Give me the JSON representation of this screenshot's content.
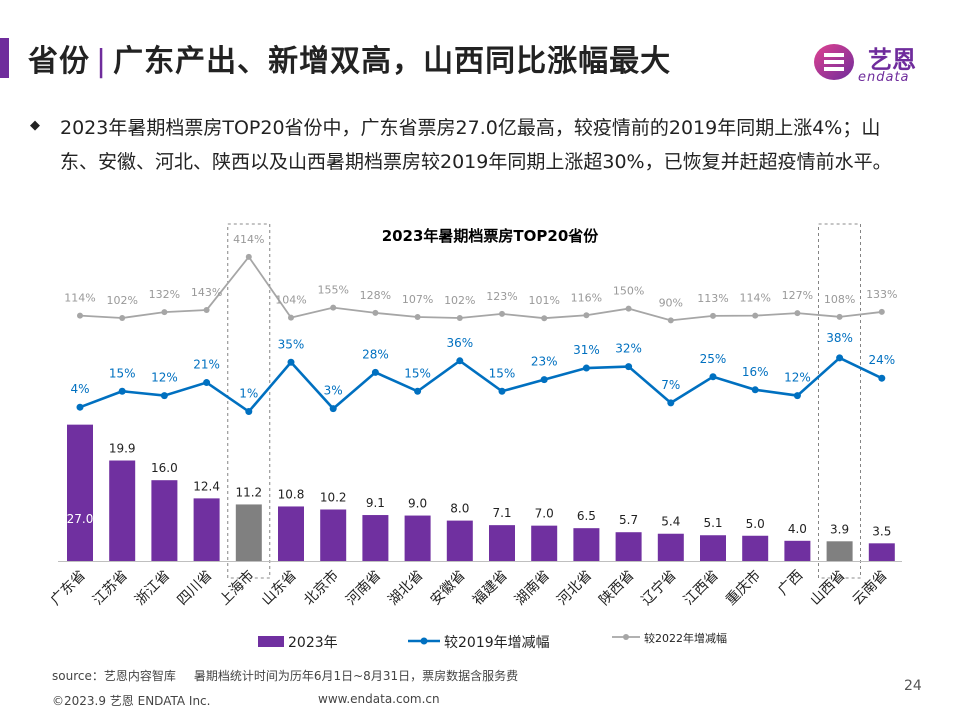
{
  "header": {
    "title_part1": "省份",
    "title_sep": "|",
    "title_part2": "广东产出、新增双高，山西同比涨幅最大",
    "accent_color": "#6f2c9c"
  },
  "logo": {
    "name": "艺恩",
    "sub": "endata",
    "icon": "endata-logo-icon"
  },
  "summary": {
    "bullet_icon": "diamond-bullet-icon",
    "text": "2023年暑期档票房TOP20省份中，广东省票房27.0亿最高，较疫情前的2019年同期上涨4%；山东、安徽、河北、陕西以及山西暑期档票房较2019年同期上涨超30%，已恢复并赶超疫情前水平。"
  },
  "chart_data": {
    "type": "bar",
    "title": "2023年暑期档票房TOP20省份",
    "categories": [
      "广东省",
      "江苏省",
      "浙江省",
      "四川省",
      "上海市",
      "山东省",
      "北京市",
      "河南省",
      "湖北省",
      "安徽省",
      "福建省",
      "湖南省",
      "河北省",
      "陕西省",
      "辽宁省",
      "江西省",
      "重庆市",
      "广西",
      "山西省",
      "云南省"
    ],
    "series": [
      {
        "name": "2023年",
        "type": "bar",
        "color": "#7030a0",
        "highlight_color": "#808080",
        "values": [
          27.0,
          19.9,
          16.0,
          12.4,
          11.2,
          10.8,
          10.2,
          9.1,
          9.0,
          8.0,
          7.1,
          7.0,
          6.5,
          5.7,
          5.4,
          5.1,
          5.0,
          4.0,
          3.9,
          3.5
        ],
        "labels": [
          "27.0",
          "19.9",
          "16.0",
          "12.4",
          "11.2",
          "10.8",
          "10.2",
          "9.1",
          "9.0",
          "8.0",
          "7.1",
          "7.0",
          "6.5",
          "5.7",
          "5.4",
          "5.1",
          "5.0",
          "4.0",
          "3.9",
          "3.5"
        ],
        "highlight": [
          "上海市",
          "山西省"
        ]
      },
      {
        "name": "较2019年增减幅",
        "type": "line",
        "color": "#0070c0",
        "values": [
          4,
          15,
          12,
          21,
          1,
          35,
          3,
          28,
          15,
          36,
          15,
          23,
          31,
          32,
          7,
          25,
          16,
          12,
          38,
          24
        ],
        "labels": [
          "4%",
          "15%",
          "12%",
          "21%",
          "1%",
          "35%",
          "3%",
          "28%",
          "15%",
          "36%",
          "15%",
          "23%",
          "31%",
          "32%",
          "7%",
          "25%",
          "16%",
          "12%",
          "38%",
          "24%"
        ]
      },
      {
        "name": "较2022年增减幅",
        "type": "line",
        "color": "#a6a6a6",
        "values": [
          114,
          102,
          132,
          143,
          414,
          104,
          155,
          128,
          107,
          102,
          123,
          101,
          116,
          150,
          90,
          113,
          114,
          127,
          108,
          133
        ],
        "labels": [
          "114%",
          "102%",
          "132%",
          "143%",
          "414%",
          "104%",
          "155%",
          "128%",
          "107%",
          "102%",
          "123%",
          "101%",
          "116%",
          "150%",
          "90%",
          "113%",
          "114%",
          "127%",
          "108%",
          "133%"
        ]
      }
    ],
    "legend_position": "bottom",
    "highlight_boxes": [
      "上海市",
      "山西省"
    ]
  },
  "footer": {
    "source_label": "source：艺恩内容智库",
    "source_note": "暑期档统计时间为历年6月1日~8月31日，票房数据含服务费",
    "copyright": "©2023.9 艺恩 ENDATA Inc.",
    "url": "www.endata.com.cn",
    "page": "24"
  }
}
